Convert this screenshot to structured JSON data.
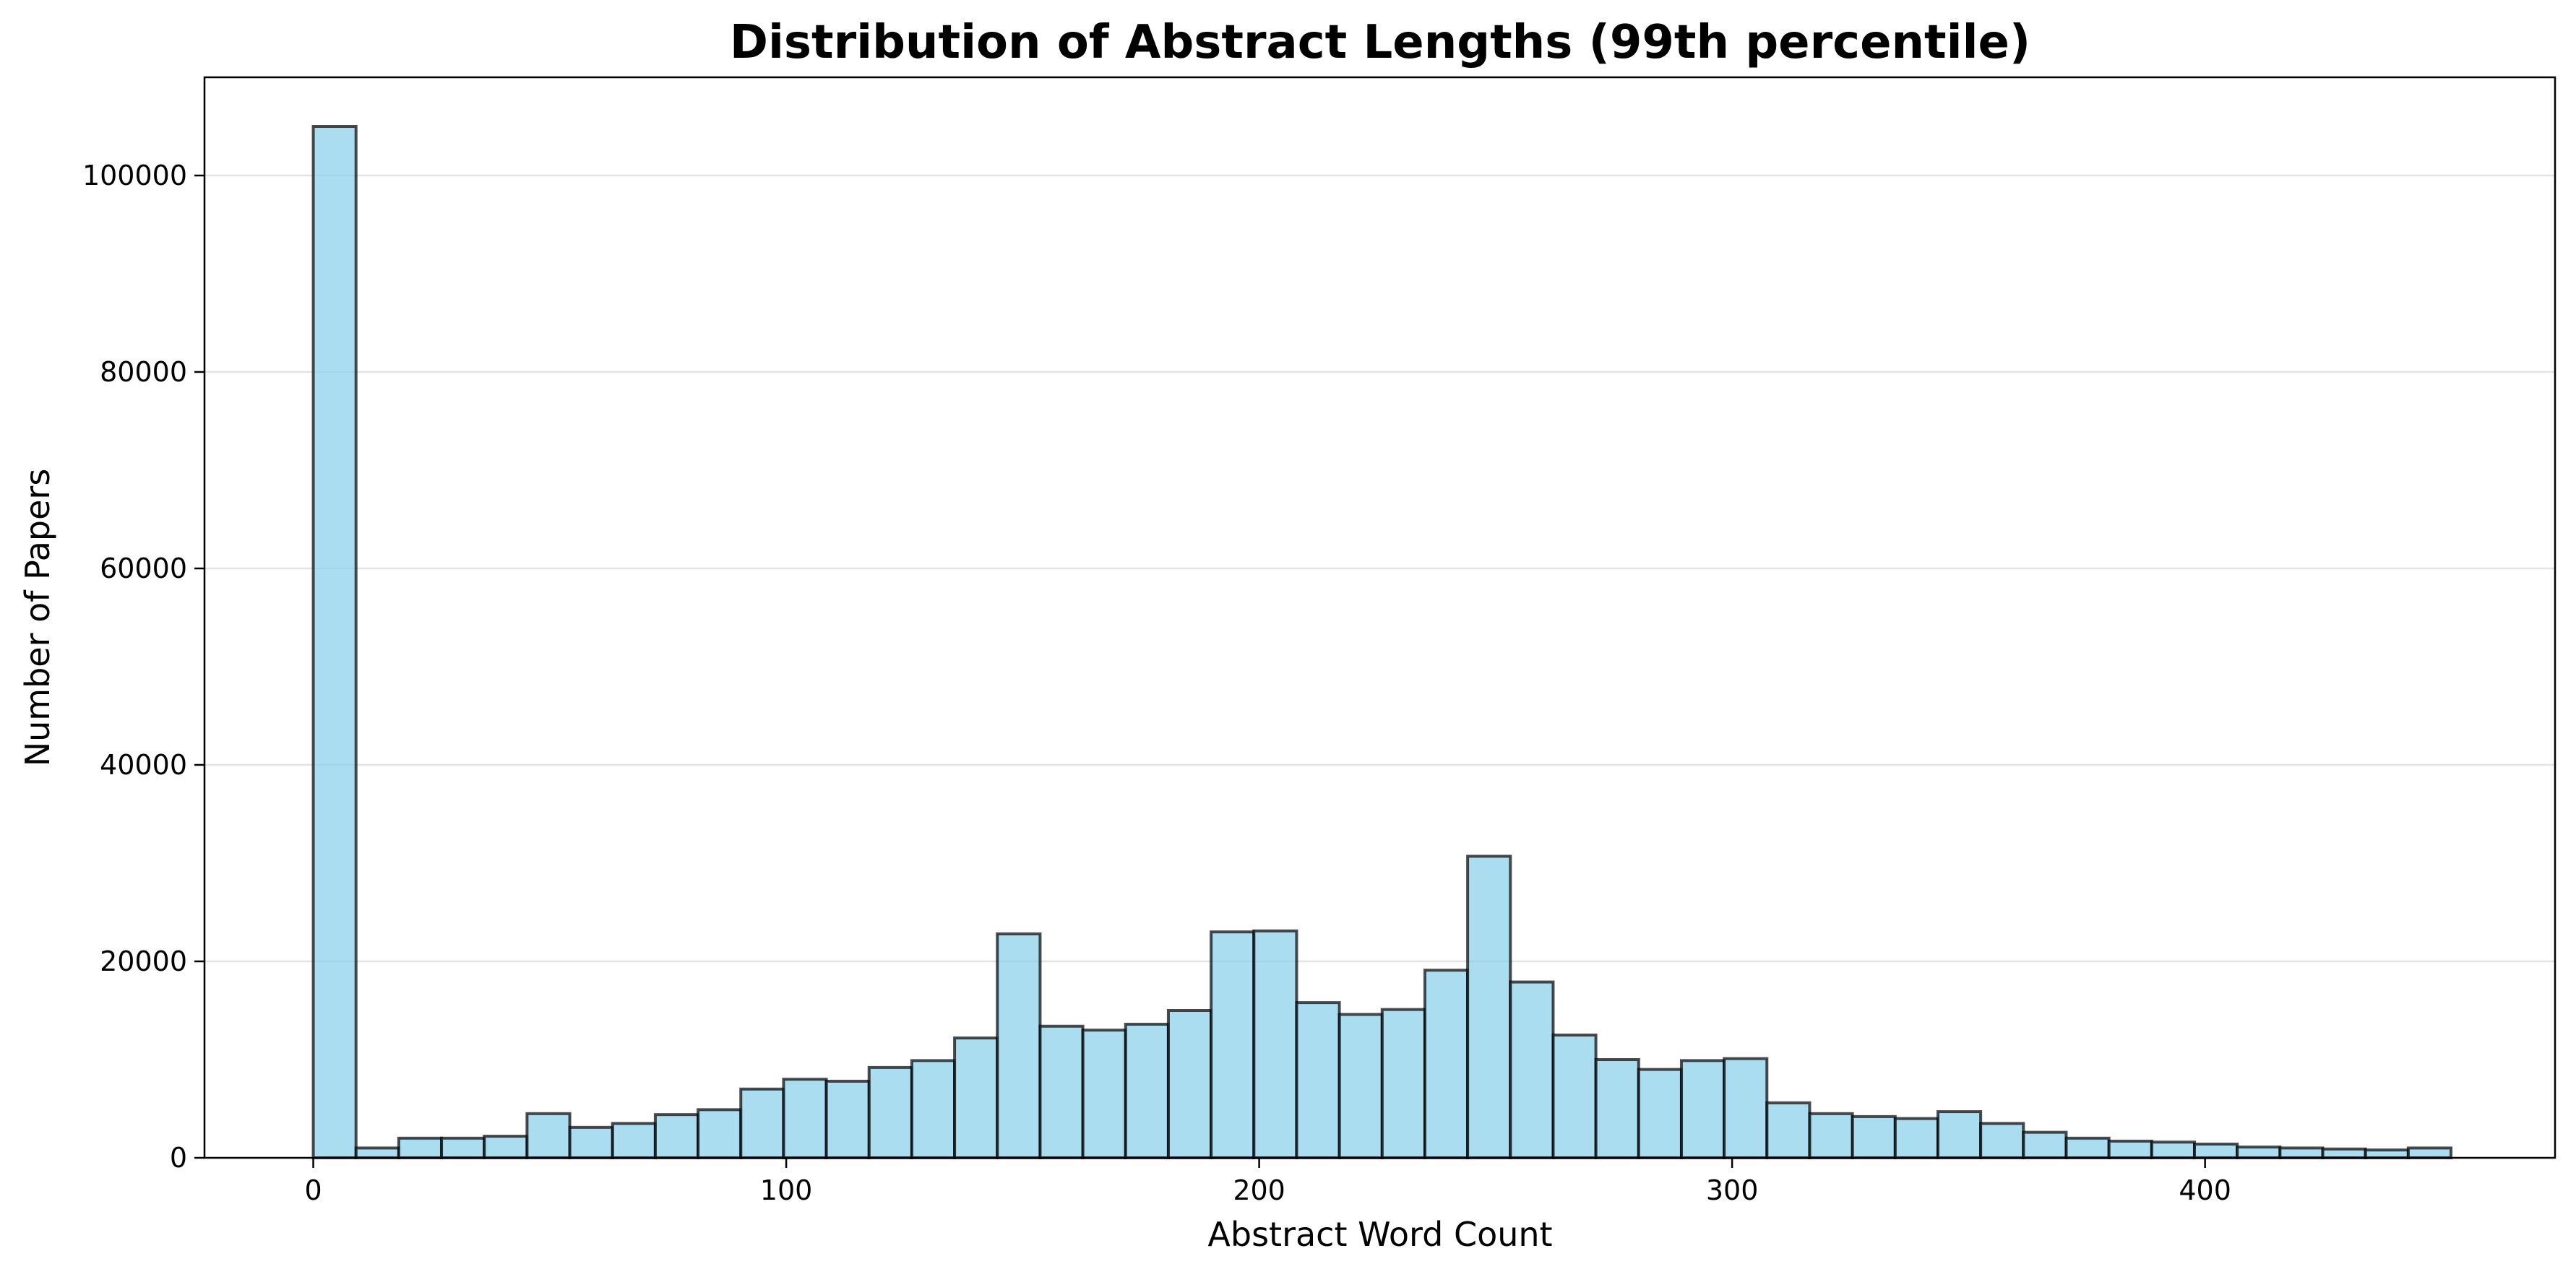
{
  "chart_data": {
    "type": "bar",
    "title": "Distribution of Abstract Lengths (99th percentile)",
    "xlabel": "Abstract Word Count",
    "ylabel": "Number of Papers",
    "bin_width": 9.04,
    "bin_start": 0,
    "xlim": [
      -23,
      474
    ],
    "ylim": [
      0,
      110000
    ],
    "xticks": [
      0,
      100,
      200,
      300,
      400
    ],
    "yticks": [
      0,
      20000,
      40000,
      60000,
      80000,
      100000
    ],
    "grid": "horizontal",
    "values": [
      105000,
      1000,
      2000,
      2000,
      2200,
      4500,
      3100,
      3500,
      4400,
      4900,
      7000,
      8000,
      7800,
      9200,
      9900,
      12200,
      22800,
      13400,
      13000,
      13600,
      15000,
      23000,
      23100,
      15800,
      14600,
      15100,
      19100,
      30700,
      17900,
      12500,
      10000,
      9000,
      9900,
      10100,
      5600,
      4500,
      4200,
      4000,
      4700,
      3500,
      2600,
      2000,
      1700,
      1600,
      1400,
      1100,
      1000,
      900,
      800,
      1000
    ]
  }
}
